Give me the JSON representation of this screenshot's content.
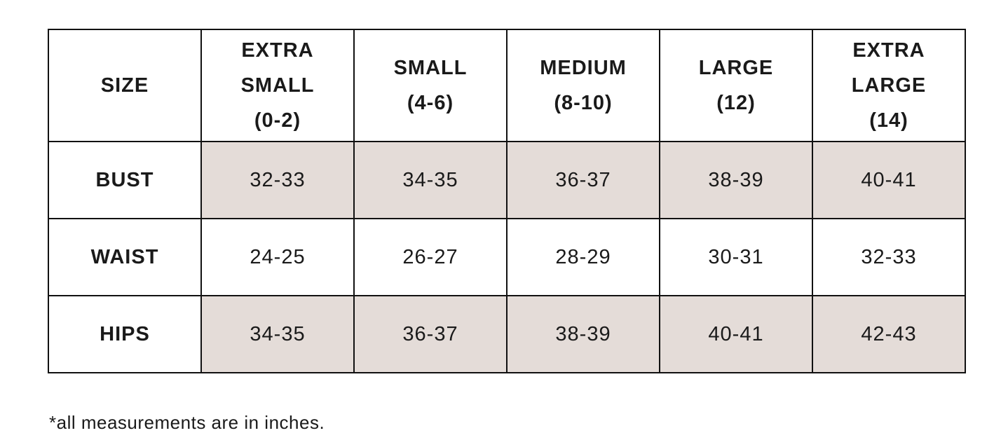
{
  "table": {
    "header": {
      "corner": "SIZE",
      "columns": [
        {
          "name": "EXTRA SMALL",
          "range": "(0-2)"
        },
        {
          "name": "SMALL",
          "range": "(4-6)"
        },
        {
          "name": "MEDIUM",
          "range": "(8-10)"
        },
        {
          "name": "LARGE",
          "range": "(12)"
        },
        {
          "name": "EXTRA LARGE",
          "range": "(14)"
        }
      ]
    },
    "rows": [
      {
        "label": "BUST",
        "values": [
          "32-33",
          "34-35",
          "36-37",
          "38-39",
          "40-41"
        ]
      },
      {
        "label": "WAIST",
        "values": [
          "24-25",
          "26-27",
          "28-29",
          "30-31",
          "32-33"
        ]
      },
      {
        "label": "HIPS",
        "values": [
          "34-35",
          "36-37",
          "38-39",
          "40-41",
          "42-43"
        ]
      }
    ],
    "shade_color": "#e4dcd8"
  },
  "footnote": "*all measurements are in inches."
}
